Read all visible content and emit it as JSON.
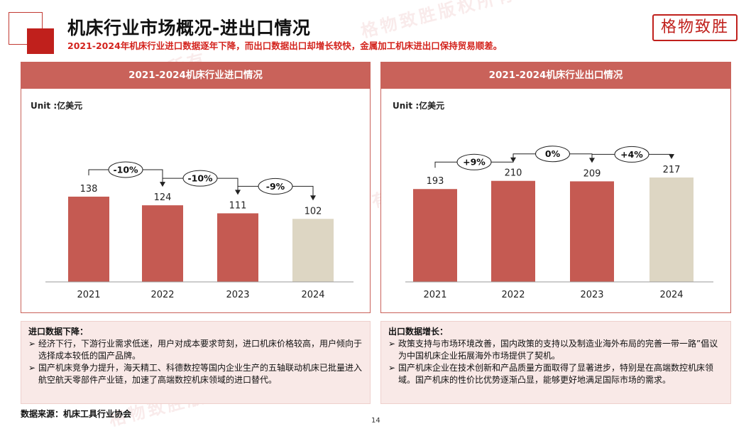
{
  "header": {
    "title": "机床行业市场概况-进出口情况",
    "subtitle": "2021-2024年机床行业进口数据逐年下降，而出口数据出口却增长较快，金属加工机床进出口保持贸易顺差。",
    "logo_text": "格物致胜"
  },
  "watermark": "格物致胜版权所有",
  "colors": {
    "accent": "#c0201c",
    "bar": "#c55a52",
    "bar_last": "#ddd6c3",
    "panel_head": "#c9625a"
  },
  "chart_data": [
    {
      "type": "bar",
      "title": "2021-2024机床行业进口情况",
      "unit_label": "Unit :亿美元",
      "categories": [
        "2021",
        "2022",
        "2023",
        "2024"
      ],
      "values": [
        138,
        124,
        111,
        102
      ],
      "value_labels": [
        "138",
        "124",
        "111",
        "102"
      ],
      "changes": [
        "-10%",
        "-10%",
        "-9%"
      ],
      "highlight_last": true
    },
    {
      "type": "bar",
      "title": "2021-2024机床行业出口情况",
      "unit_label": "Unit :亿美元",
      "categories": [
        "2021",
        "2022",
        "2023",
        "2024"
      ],
      "values": [
        193,
        210,
        209,
        217
      ],
      "value_labels": [
        "193",
        "210",
        "209",
        "217"
      ],
      "changes": [
        "+9%",
        "0%",
        "+4%"
      ],
      "highlight_last": true
    }
  ],
  "notes": {
    "import": {
      "title": "进口数据下降：",
      "items": [
        "经济下行，下游行业需求低迷，用户对成本要求苛刻，进口机床价格较高，用户倾向于选择成本较低的国产品牌。",
        "国产机床竞争力提升，海天精工、科德数控等国内企业生产的五轴联动机床已批量进入航空航天零部件产业链，加速了高端数控机床领域的进口替代。"
      ]
    },
    "export": {
      "title": "出口数据增长：",
      "items": [
        "政策支持与市场环境改善，国内政策的支持以及制造业海外布局的完善一带一路”倡议为中国机床企业拓展海外市场提供了契机。",
        "国产机床企业在技术创新和产品质量方面取得了显著进步，特别是在高端数控机床领域。国产机床的性价比优势逐渐凸显，能够更好地满足国际市场的需求。"
      ]
    }
  },
  "footer": {
    "source": "数据来源：机床工具行业协会",
    "page": "14"
  },
  "bullet_glyph": "➢"
}
